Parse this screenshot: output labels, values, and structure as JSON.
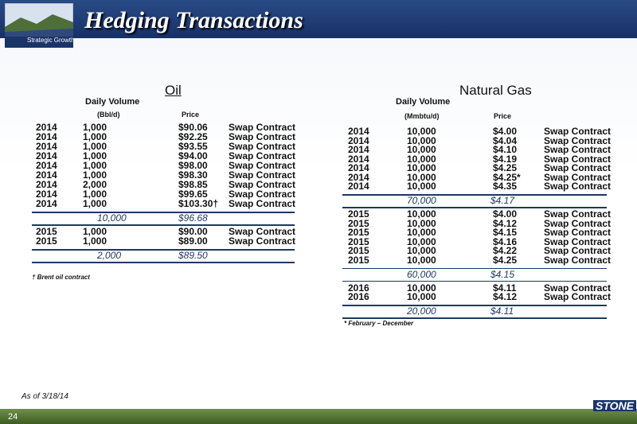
{
  "header": {
    "title": "Hedging Transactions",
    "logo_caption": "Strategic Growth"
  },
  "oil": {
    "title": "Oil",
    "col_headers": [
      "Daily Volume",
      "(Bbl/d)",
      "Price"
    ],
    "groups": [
      {
        "rows": [
          [
            "2014",
            "1,000",
            "$90.06",
            "Swap Contract"
          ],
          [
            "2014",
            "1,000",
            "$92.25",
            "Swap Contract"
          ],
          [
            "2014",
            "1,000",
            "$93.55",
            "Swap Contract"
          ],
          [
            "2014",
            "1,000",
            "$94.00",
            "Swap Contract"
          ],
          [
            "2014",
            "1,000",
            "$98.00",
            "Swap Contract"
          ],
          [
            "2014",
            "1,000",
            "$98.30",
            "Swap Contract"
          ],
          [
            "2014",
            "2,000",
            "$98.85",
            "Swap Contract"
          ],
          [
            "2014",
            "1,000",
            "$99.65",
            "Swap Contract"
          ],
          [
            "2014",
            "1,000",
            "$103.30†",
            "Swap Contract"
          ]
        ],
        "total": [
          "10,000",
          "$96.68"
        ]
      },
      {
        "rows": [
          [
            "2015",
            "1,000",
            "$90.00",
            "Swap Contract"
          ],
          [
            "2015",
            "1,000",
            "$89.00",
            "Swap Contract"
          ]
        ],
        "total": [
          "2,000",
          "$89.50"
        ]
      }
    ],
    "footnote": "† Brent oil contract"
  },
  "gas": {
    "title": "Natural Gas",
    "col_headers": [
      "Daily Volume",
      "(Mmbtu/d)",
      "Price"
    ],
    "groups": [
      {
        "rows": [
          [
            "2014",
            "10,000",
            "$4.00",
            "Swap Contract"
          ],
          [
            "2014",
            "10,000",
            "$4.04",
            "Swap Contract"
          ],
          [
            "2014",
            "10,000",
            "$4.10",
            "Swap Contract"
          ],
          [
            "2014",
            "10,000",
            "$4.19",
            "Swap Contract"
          ],
          [
            "2014",
            "10,000",
            "$4.25",
            "Swap Contract"
          ],
          [
            "2014",
            "10,000",
            "$4.25*",
            "Swap Contract"
          ],
          [
            "2014",
            "10,000",
            "$4.35",
            "Swap Contract"
          ]
        ],
        "total": [
          "70,000",
          "$4.17"
        ]
      },
      {
        "rows": [
          [
            "2015",
            "10,000",
            "$4.00",
            "Swap Contract"
          ],
          [
            "2015",
            "10,000",
            "$4.12",
            "Swap Contract"
          ],
          [
            "2015",
            "10,000",
            "$4.15",
            "Swap Contract"
          ],
          [
            "2015",
            "10,000",
            "$4.16",
            "Swap Contract"
          ],
          [
            "2015",
            "10,000",
            "$4.22",
            "Swap Contract"
          ],
          [
            "2015",
            "10,000",
            "$4.25",
            "Swap Contract"
          ]
        ],
        "total": [
          "60,000",
          "$4.15"
        ]
      },
      {
        "rows": [
          [
            "2016",
            "10,000",
            "$4.11",
            "Swap Contract"
          ],
          [
            "2016",
            "10,000",
            "$4.12",
            "Swap Contract"
          ]
        ],
        "total": [
          "20,000",
          "$4.11"
        ]
      }
    ],
    "footnote": "* February – December"
  },
  "as_of": "As of 3/18/14",
  "page_number": "24",
  "brand": "STONE"
}
